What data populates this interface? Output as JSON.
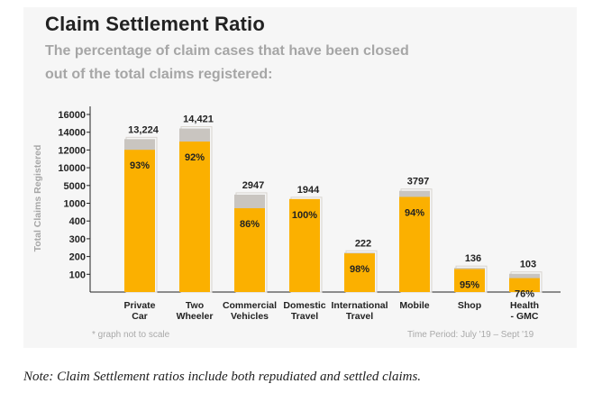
{
  "title": "Claim Settlement Ratio",
  "subtitle": "The percentage of claim cases that have been closed out of the total claims registered:",
  "footnote": "* graph not to scale",
  "time_period": "Time Period: July '19 – Sept '19",
  "note": "Note: Claim Settlement ratios include both repudiated and settled claims.",
  "colors": {
    "settled": "#fbb000",
    "total": "#c9c5c0",
    "axis": "#222222",
    "muted": "#a6a6a6"
  },
  "chart_data": {
    "type": "bar",
    "scale": "non-linear (graph not to scale)",
    "ylabel": "Total Claims Registered",
    "yticks": [
      "16000",
      "14000",
      "12000",
      "10000",
      "5000",
      "1000",
      "400",
      "300",
      "200",
      "100"
    ],
    "categories": [
      {
        "label_lines": [
          "Private",
          "Car"
        ],
        "total": 13224,
        "total_label": "13,224",
        "ratio": 93,
        "ratio_label": "93%"
      },
      {
        "label_lines": [
          "Two",
          "Wheeler"
        ],
        "total": 14421,
        "total_label": "14,421",
        "ratio": 92,
        "ratio_label": "92%"
      },
      {
        "label_lines": [
          "Commercial",
          "Vehicles"
        ],
        "total": 2947,
        "total_label": "2947",
        "ratio": 86,
        "ratio_label": "86%"
      },
      {
        "label_lines": [
          "Domestic",
          "Travel"
        ],
        "total": 1944,
        "total_label": "1944",
        "ratio": 100,
        "ratio_label": "100%"
      },
      {
        "label_lines": [
          "International",
          "Travel"
        ],
        "total": 222,
        "total_label": "222",
        "ratio": 98,
        "ratio_label": "98%"
      },
      {
        "label_lines": [
          "Mobile"
        ],
        "total": 3797,
        "total_label": "3797",
        "ratio": 94,
        "ratio_label": "94%"
      },
      {
        "label_lines": [
          "Shop"
        ],
        "total": 136,
        "total_label": "136",
        "ratio": 95,
        "ratio_label": "95%"
      },
      {
        "label_lines": [
          "Health",
          "- GMC"
        ],
        "total": 103,
        "total_label": "103",
        "ratio": 76,
        "ratio_label": "76%"
      }
    ]
  }
}
